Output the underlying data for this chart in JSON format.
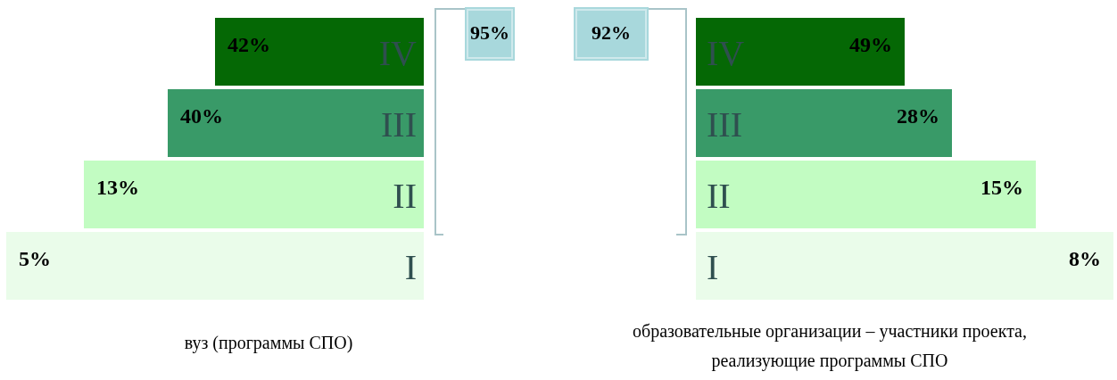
{
  "chart_data": [
    {
      "type": "other",
      "categories": [
        "IV",
        "III",
        "II",
        "I"
      ],
      "values": [
        42,
        40,
        13,
        5
      ],
      "colors": [
        "#056805",
        "#399a68",
        "#c2fcc2",
        "#eafcea"
      ],
      "value_labels": [
        "42%",
        "40%",
        "13%",
        "5%"
      ],
      "annotations": [
        "95%"
      ],
      "xlabel": "вуз (программы СПО)"
    },
    {
      "type": "other",
      "categories": [
        "IV",
        "III",
        "II",
        "I"
      ],
      "values": [
        49,
        28,
        15,
        8
      ],
      "colors": [
        "#056805",
        "#399a68",
        "#c2fcc2",
        "#eafcea"
      ],
      "value_labels": [
        "49%",
        "28%",
        "15%",
        "8%"
      ],
      "annotations": [
        "92%"
      ],
      "xlabel": "образовательные организации – участники проекта, реализующие программы СПО"
    }
  ]
}
